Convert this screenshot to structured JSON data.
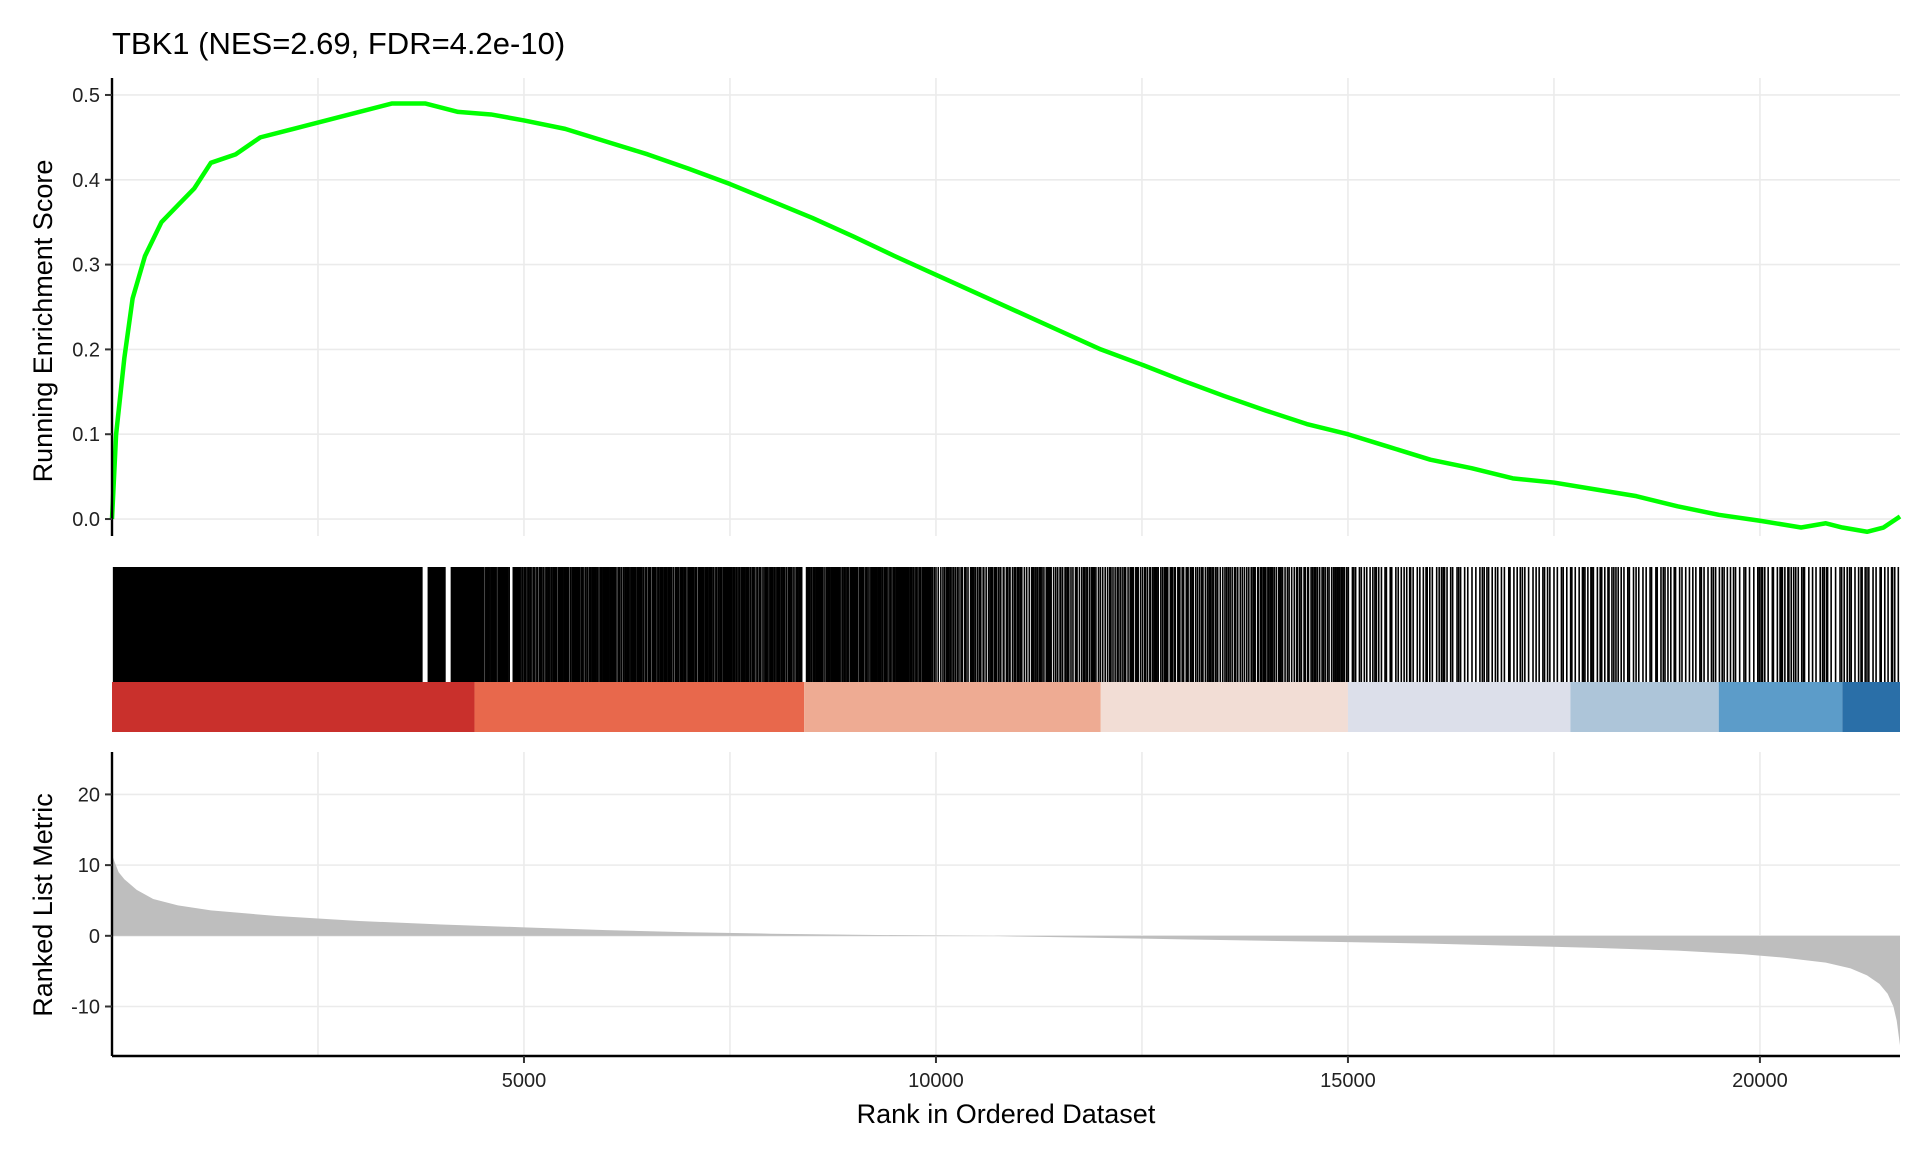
{
  "chart_data": {
    "type": "line",
    "title": "TBK1 (NES=2.69, FDR=4.2e-10)",
    "xlabel": "Rank in Ordered Dataset",
    "xlim": [
      0,
      21700
    ],
    "x_ticks": [
      5000,
      10000,
      15000,
      20000
    ],
    "x_tick_labels": [
      "5000",
      "10000",
      "15000",
      "20000"
    ],
    "x_minor_grid": [
      2500,
      7500,
      12500,
      17500
    ],
    "colors": {
      "es_line": "#00ff00",
      "hits": "#000000",
      "metric_fill": "#bebebe",
      "grid": "#ebebeb"
    },
    "panels": {
      "enrichment": {
        "ylabel": "Running Enrichment Score",
        "ylim": [
          -0.02,
          0.52
        ],
        "y_ticks": [
          0.0,
          0.1,
          0.2,
          0.3,
          0.4,
          0.5
        ],
        "y_tick_labels": [
          "0.0",
          "0.1",
          "0.2",
          "0.3",
          "0.4",
          "0.5"
        ],
        "series": [
          {
            "x": [
              0,
              50,
              150,
              250,
              400,
              600,
              800,
              1000,
              1200,
              1500,
              1800,
              2200,
              2600,
              3000,
              3400,
              3800,
              4200,
              4600,
              5000,
              5500,
              6000,
              6500,
              7000,
              7500,
              8000,
              8500,
              9000,
              9500,
              10000,
              10500,
              11000,
              11500,
              12000,
              12500,
              13000,
              13500,
              14000,
              14500,
              15000,
              15500,
              16000,
              16500,
              17000,
              17500,
              18000,
              18500,
              19000,
              19500,
              20000,
              20500,
              20800,
              21000,
              21300,
              21500,
              21700
            ],
            "y": [
              0.0,
              0.1,
              0.19,
              0.26,
              0.31,
              0.35,
              0.37,
              0.39,
              0.42,
              0.43,
              0.45,
              0.46,
              0.47,
              0.48,
              0.49,
              0.49,
              0.48,
              0.477,
              0.47,
              0.46,
              0.445,
              0.43,
              0.413,
              0.395,
              0.375,
              0.355,
              0.333,
              0.31,
              0.288,
              0.266,
              0.244,
              0.222,
              0.2,
              0.182,
              0.163,
              0.145,
              0.128,
              0.112,
              0.1,
              0.085,
              0.07,
              0.06,
              0.048,
              0.043,
              0.035,
              0.027,
              0.015,
              0.005,
              -0.002,
              -0.01,
              -0.005,
              -0.01,
              -0.015,
              -0.01,
              0.003
            ]
          }
        ]
      },
      "hits": {
        "bands": [
          {
            "x0": 0,
            "x1": 4400,
            "color": "#c9302c"
          },
          {
            "x0": 4400,
            "x1": 8400,
            "color": "#e8684c"
          },
          {
            "x0": 8400,
            "x1": 12000,
            "color": "#eeab93"
          },
          {
            "x0": 12000,
            "x1": 15000,
            "color": "#f2ddd5"
          },
          {
            "x0": 15000,
            "x1": 17700,
            "color": "#dcdfea"
          },
          {
            "x0": 17700,
            "x1": 19500,
            "color": "#adc5d9"
          },
          {
            "x0": 19500,
            "x1": 21000,
            "color": "#5c9cc9"
          },
          {
            "x0": 21000,
            "x1": 21700,
            "color": "#2a6fa8"
          }
        ]
      },
      "metric": {
        "ylabel": "Ranked List Metric",
        "ylim": [
          -17,
          26
        ],
        "y_ticks": [
          -10,
          0,
          10,
          20
        ],
        "y_tick_labels": [
          "-10",
          "0",
          "10",
          "20"
        ],
        "series": [
          {
            "x": [
              0,
              30,
              80,
              150,
              300,
              500,
              800,
              1200,
              2000,
              3000,
              4000,
              5000,
              6000,
              7000,
              8000,
              9000,
              10000,
              10700,
              11000,
              12000,
              13000,
              14000,
              15000,
              16000,
              17000,
              18000,
              19000,
              19800,
              20300,
              20800,
              21100,
              21300,
              21450,
              21550,
              21620,
              21660,
              21700
            ],
            "y": [
              11.5,
              10.5,
              9,
              8,
              6.5,
              5.2,
              4.3,
              3.6,
              2.8,
              2.1,
              1.6,
              1.2,
              0.8,
              0.5,
              0.3,
              0.15,
              0.05,
              0.0,
              -0.1,
              -0.3,
              -0.5,
              -0.7,
              -0.9,
              -1.1,
              -1.4,
              -1.7,
              -2.1,
              -2.6,
              -3.1,
              -3.8,
              -4.6,
              -5.6,
              -6.8,
              -8.2,
              -10,
              -12,
              -15.5
            ]
          }
        ]
      }
    }
  }
}
